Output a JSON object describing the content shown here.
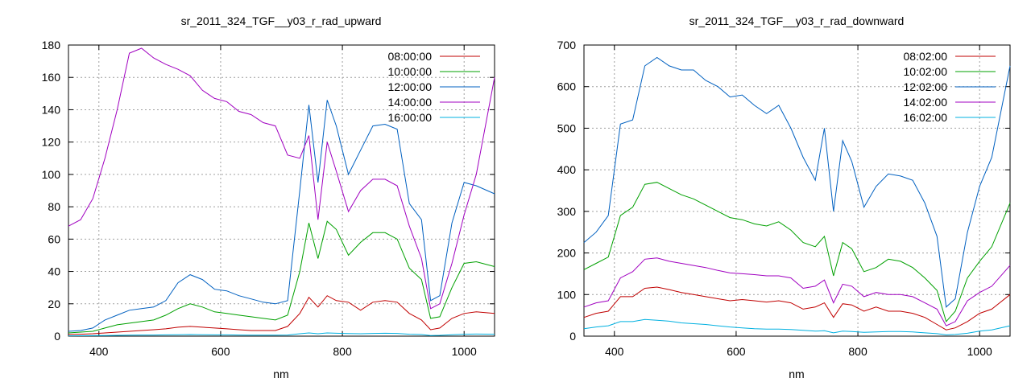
{
  "chart_data": [
    {
      "type": "line",
      "title": "sr_2011_324_TGF__y03_r_rad_upward",
      "xlabel": "nm",
      "ylabel": "",
      "xlim": [
        350,
        1050
      ],
      "ylim": [
        0,
        180
      ],
      "xticks": [
        400,
        600,
        800,
        1000
      ],
      "yticks": [
        0,
        20,
        40,
        60,
        80,
        100,
        120,
        140,
        160,
        180
      ],
      "grid": true,
      "legend_position": "top-right",
      "x": [
        350,
        370,
        390,
        410,
        430,
        450,
        470,
        490,
        510,
        530,
        550,
        570,
        590,
        610,
        630,
        650,
        670,
        690,
        710,
        730,
        745,
        760,
        775,
        790,
        810,
        830,
        850,
        870,
        890,
        910,
        930,
        945,
        960,
        980,
        1000,
        1020,
        1050
      ],
      "series": [
        {
          "name": "08:00:00",
          "color": "#c00000",
          "values": [
            1,
            1.2,
            1.5,
            2,
            2.5,
            3,
            3.5,
            4,
            4.5,
            5.5,
            6,
            5.5,
            5,
            4.5,
            4,
            3.5,
            3.5,
            3.5,
            6,
            14,
            24,
            18,
            25,
            22,
            21,
            16,
            21,
            22,
            21,
            14,
            10,
            4,
            5,
            11,
            14,
            15,
            14
          ]
        },
        {
          "name": "10:00:00",
          "color": "#00a000",
          "values": [
            2,
            2.5,
            3,
            5,
            7,
            8,
            9,
            10,
            13,
            17,
            20,
            18,
            15,
            14,
            13,
            12,
            11,
            10,
            13,
            40,
            70,
            48,
            71,
            66,
            50,
            58,
            64,
            64,
            60,
            42,
            35,
            11,
            12,
            30,
            45,
            46,
            43
          ]
        },
        {
          "name": "12:00:00",
          "color": "#0060c0",
          "values": [
            3,
            3.5,
            5,
            10,
            13,
            16,
            17,
            18,
            22,
            33,
            38,
            35,
            29,
            28,
            25,
            23,
            21,
            20,
            22,
            90,
            143,
            95,
            146,
            130,
            100,
            115,
            130,
            131,
            128,
            82,
            72,
            22,
            25,
            70,
            95,
            93,
            88
          ]
        },
        {
          "name": "14:00:00",
          "color": "#a000c0",
          "values": [
            68,
            72,
            85,
            110,
            140,
            175,
            178,
            172,
            168,
            165,
            161,
            152,
            147,
            145,
            139,
            137,
            132,
            130,
            112,
            110,
            124,
            72,
            120,
            102,
            77,
            90,
            97,
            97,
            93,
            68,
            48,
            17,
            20,
            45,
            75,
            100,
            160
          ]
        },
        {
          "name": "16:00:00",
          "color": "#00b0e0",
          "values": [
            0.2,
            0.25,
            0.3,
            0.4,
            0.5,
            0.6,
            0.7,
            0.7,
            0.8,
            0.9,
            1,
            0.9,
            0.8,
            0.8,
            0.7,
            0.6,
            0.6,
            0.6,
            0.7,
            1.5,
            2,
            1.5,
            2,
            1.8,
            1.6,
            1.5,
            1.7,
            1.8,
            1.7,
            1.2,
            1,
            0.4,
            0.5,
            0.9,
            1.2,
            1.3,
            1.2
          ]
        }
      ]
    },
    {
      "type": "line",
      "title": "sr_2011_324_TGF__y03_r_rad_downward",
      "xlabel": "nm",
      "ylabel": "",
      "xlim": [
        350,
        1050
      ],
      "ylim": [
        0,
        700
      ],
      "xticks": [
        400,
        600,
        800,
        1000
      ],
      "yticks": [
        0,
        100,
        200,
        300,
        400,
        500,
        600,
        700
      ],
      "grid": true,
      "legend_position": "top-right",
      "x": [
        350,
        370,
        390,
        410,
        430,
        450,
        470,
        490,
        510,
        530,
        550,
        570,
        590,
        610,
        630,
        650,
        670,
        690,
        710,
        730,
        745,
        760,
        775,
        790,
        810,
        830,
        850,
        870,
        890,
        910,
        930,
        945,
        960,
        980,
        1000,
        1020,
        1050
      ],
      "series": [
        {
          "name": "08:02:00",
          "color": "#c00000",
          "values": [
            45,
            55,
            60,
            95,
            95,
            115,
            118,
            112,
            105,
            100,
            95,
            90,
            85,
            88,
            85,
            82,
            85,
            80,
            65,
            70,
            80,
            45,
            78,
            75,
            60,
            70,
            60,
            60,
            55,
            45,
            28,
            15,
            20,
            35,
            55,
            65,
            100
          ]
        },
        {
          "name": "10:02:00",
          "color": "#00a000",
          "values": [
            160,
            175,
            190,
            290,
            310,
            365,
            370,
            355,
            340,
            330,
            315,
            300,
            285,
            280,
            270,
            265,
            275,
            255,
            225,
            215,
            240,
            145,
            225,
            210,
            155,
            165,
            185,
            180,
            165,
            140,
            110,
            35,
            60,
            140,
            180,
            215,
            320
          ]
        },
        {
          "name": "12:02:00",
          "color": "#0060c0",
          "values": [
            225,
            250,
            290,
            510,
            520,
            650,
            670,
            650,
            640,
            640,
            615,
            600,
            575,
            580,
            555,
            535,
            555,
            500,
            430,
            375,
            500,
            300,
            470,
            420,
            310,
            360,
            390,
            385,
            375,
            320,
            240,
            70,
            90,
            250,
            360,
            430,
            650
          ]
        },
        {
          "name": "14:02:00",
          "color": "#a000c0",
          "values": [
            70,
            80,
            85,
            140,
            155,
            185,
            188,
            180,
            175,
            170,
            165,
            158,
            152,
            150,
            148,
            145,
            145,
            140,
            115,
            120,
            135,
            80,
            125,
            120,
            95,
            105,
            100,
            100,
            95,
            80,
            65,
            25,
            35,
            85,
            105,
            120,
            170
          ]
        },
        {
          "name": "16:02:00",
          "color": "#00b0e0",
          "values": [
            18,
            22,
            25,
            35,
            35,
            40,
            38,
            36,
            32,
            30,
            28,
            25,
            22,
            20,
            18,
            17,
            17,
            16,
            14,
            12,
            13,
            8,
            12,
            11,
            9,
            10,
            11,
            11,
            10,
            8,
            6,
            3,
            4,
            7,
            12,
            15,
            25
          ]
        }
      ]
    }
  ]
}
